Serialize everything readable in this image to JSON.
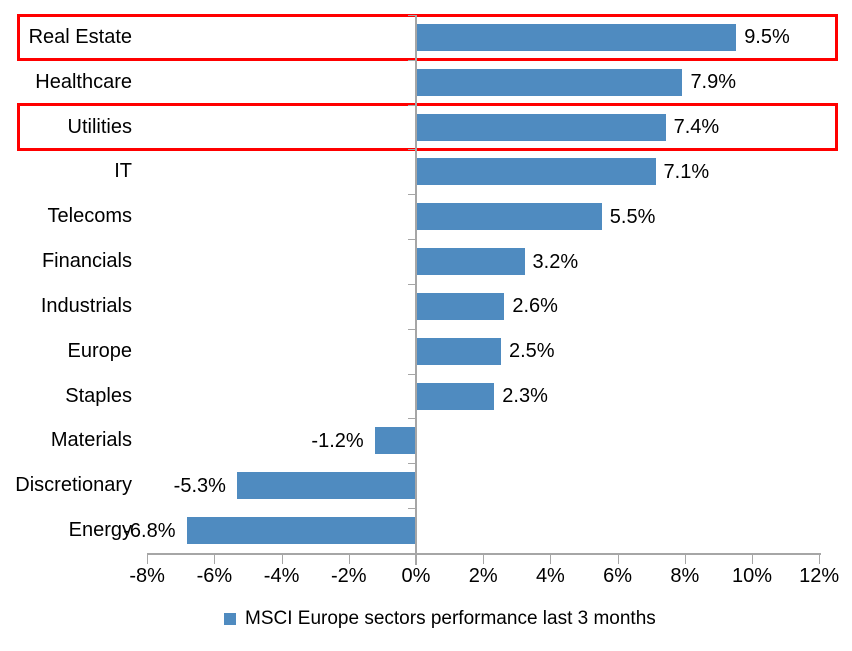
{
  "chart_data": {
    "type": "bar",
    "orientation": "horizontal",
    "title": "",
    "categories": [
      "Real Estate",
      "Healthcare",
      "Utilities",
      "IT",
      "Telecoms",
      "Financials",
      "Industrials",
      "Europe",
      "Staples",
      "Materials",
      "Discretionary",
      "Energy"
    ],
    "values": [
      9.5,
      7.9,
      7.4,
      7.1,
      5.5,
      3.2,
      2.6,
      2.5,
      2.3,
      -1.2,
      -5.3,
      -6.8
    ],
    "value_labels": [
      "9.5%",
      "7.9%",
      "7.4%",
      "7.1%",
      "5.5%",
      "3.2%",
      "2.6%",
      "2.5%",
      "2.3%",
      "-1.2%",
      "-5.3%",
      "-6.8%"
    ],
    "xlim": [
      -8,
      12
    ],
    "x_tick_values": [
      -8,
      -6,
      -4,
      -2,
      0,
      2,
      4,
      6,
      8,
      10,
      12
    ],
    "x_tick_labels": [
      "-8%",
      "-6%",
      "-4%",
      "-2%",
      "0%",
      "2%",
      "4%",
      "6%",
      "8%",
      "10%",
      "12%"
    ],
    "grid": false,
    "legend": "MSCI Europe sectors performance last 3 months",
    "legend_position": "bottom",
    "bar_color": "#4F8BC0",
    "axis_color": "#A6A6A6",
    "highlight_color": "#FF0000",
    "highlighted_categories": [
      "Real Estate",
      "Utilities"
    ]
  }
}
